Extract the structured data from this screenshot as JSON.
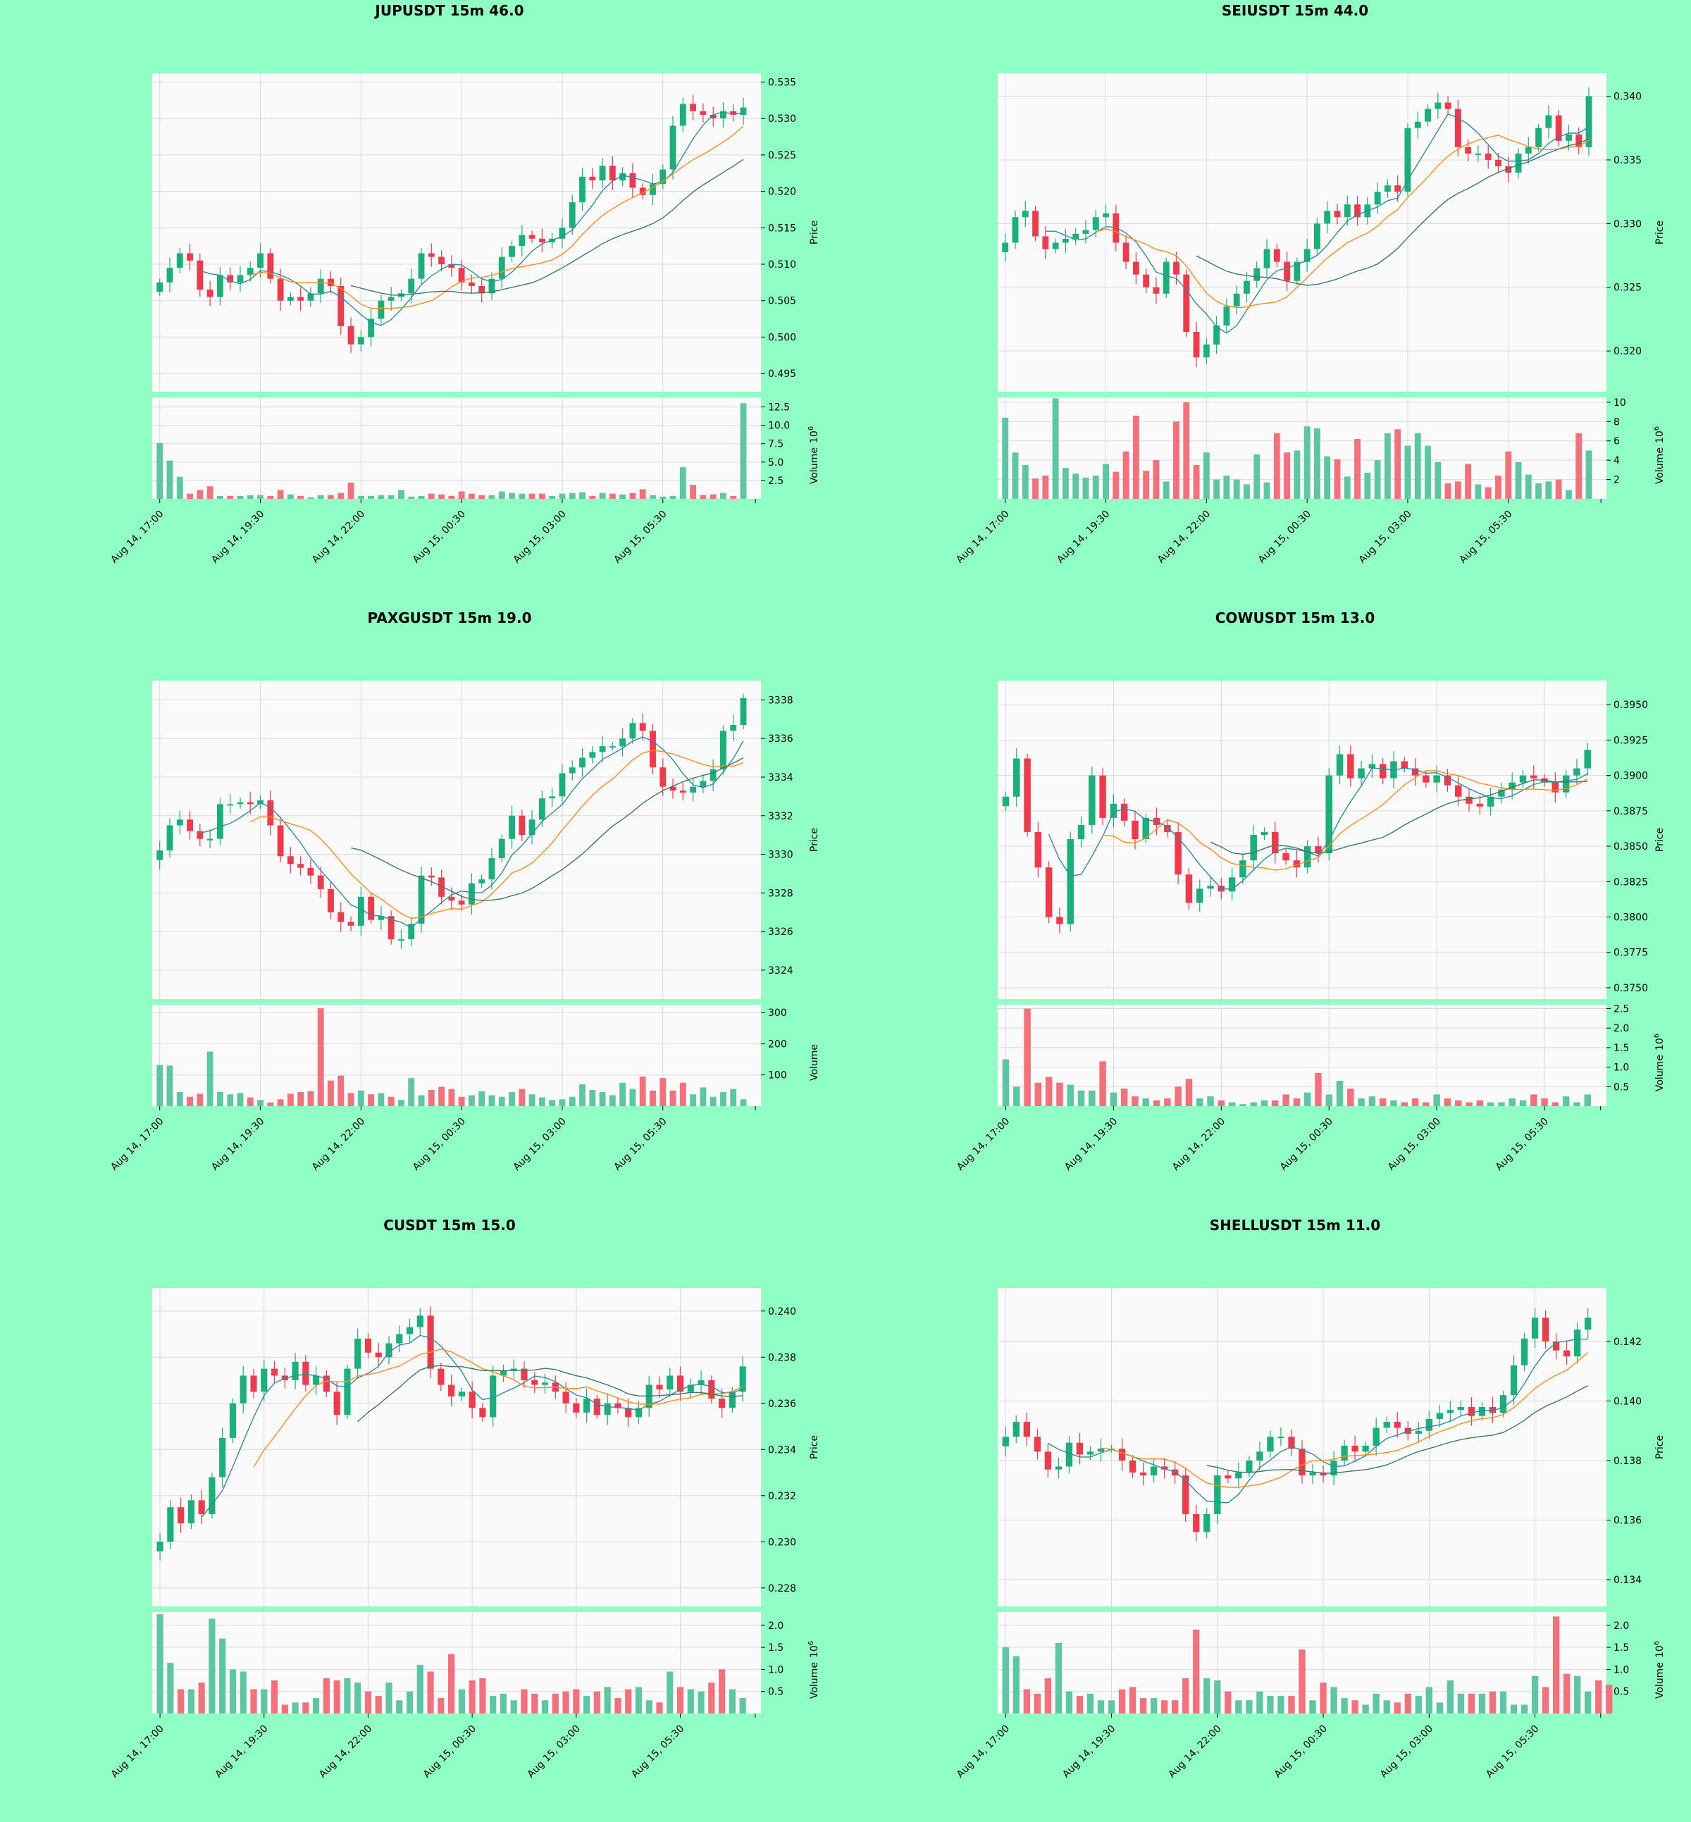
{
  "colors": {
    "background": "#90ffc3",
    "panel": "#fafafa",
    "grid": "#d9d9d9",
    "up": "#19b07a",
    "down": "#f0394a",
    "up_volume": "#5cc7a3",
    "down_volume": "#f4707a",
    "ma_fast": "#2d8ca0",
    "ma_mid": "#ff8a1e",
    "ma_slow": "#3a7a68"
  },
  "chart_data": [
    {
      "type": "candlestick",
      "title": "JUPUSDT 15m 46.0",
      "ylabel": "Price",
      "volume_label": "Volume",
      "volume_exponent": "10",
      "volume_exponent_power": "6",
      "x_ticks": [
        "Aug 14, 17:00",
        "Aug 14, 19:30",
        "Aug 14, 22:00",
        "Aug 15, 00:30",
        "Aug 15, 03:00",
        "Aug 15, 05:30"
      ],
      "x_tick_index": [
        0,
        10,
        20,
        30,
        40,
        50
      ],
      "price_ticks": [
        "0.495",
        "0.500",
        "0.505",
        "0.510",
        "0.515",
        "0.520",
        "0.525",
        "0.530",
        "0.535"
      ],
      "price_range": [
        0.4925,
        0.5362
      ],
      "volume_ticks": [
        "2.5",
        "5.0",
        "7.5",
        "10.0",
        "12.5"
      ],
      "volume_range": [
        0,
        13.8
      ],
      "closes": [
        0.5075,
        0.5095,
        0.5115,
        0.5105,
        0.5065,
        0.5055,
        0.5085,
        0.5075,
        0.5085,
        0.5095,
        0.5115,
        0.508,
        0.505,
        0.5055,
        0.505,
        0.506,
        0.508,
        0.507,
        0.5015,
        0.499,
        0.5,
        0.5025,
        0.505,
        0.5055,
        0.506,
        0.508,
        0.5115,
        0.511,
        0.51,
        0.5095,
        0.5075,
        0.507,
        0.506,
        0.508,
        0.511,
        0.5125,
        0.514,
        0.5135,
        0.513,
        0.5135,
        0.515,
        0.5185,
        0.522,
        0.5215,
        0.5235,
        0.5215,
        0.5225,
        0.5205,
        0.5195,
        0.521,
        0.523,
        0.529,
        0.532,
        0.531,
        0.5305,
        0.53,
        0.531,
        0.5305,
        0.5315
      ],
      "volumes": [
        7.6,
        5.2,
        3.0,
        0.7,
        1.2,
        1.7,
        0.4,
        0.4,
        0.4,
        0.5,
        0.5,
        0.4,
        1.2,
        0.6,
        0.4,
        0.2,
        0.5,
        0.5,
        0.8,
        2.2,
        0.4,
        0.4,
        0.5,
        0.5,
        1.2,
        0.3,
        0.4,
        0.7,
        0.6,
        0.4,
        1.0,
        0.7,
        0.5,
        0.5,
        1.0,
        0.8,
        0.7,
        0.7,
        0.7,
        0.4,
        0.7,
        0.8,
        0.9,
        0.4,
        0.8,
        0.7,
        0.6,
        0.8,
        1.3,
        0.5,
        0.3,
        0.4,
        4.3,
        1.9,
        0.5,
        0.6,
        0.8,
        0.4,
        13.0
      ]
    },
    {
      "type": "candlestick",
      "title": "SEIUSDT 15m 44.0",
      "ylabel": "Price",
      "volume_label": "Volume",
      "volume_exponent": "10",
      "volume_exponent_power": "6",
      "x_ticks": [
        "Aug 14, 17:00",
        "Aug 14, 19:30",
        "Aug 14, 22:00",
        "Aug 15, 00:30",
        "Aug 15, 03:00",
        "Aug 15, 05:30"
      ],
      "x_tick_index": [
        0,
        10,
        20,
        30,
        40,
        50
      ],
      "price_ticks": [
        "0.320",
        "0.325",
        "0.330",
        "0.335",
        "0.340"
      ],
      "price_range": [
        0.3168,
        0.3418
      ],
      "volume_ticks": [
        "2",
        "4",
        "6",
        "8",
        "10"
      ],
      "volume_range": [
        0,
        10.5
      ],
      "closes": [
        0.3285,
        0.3305,
        0.331,
        0.329,
        0.328,
        0.3285,
        0.3288,
        0.3292,
        0.3295,
        0.3305,
        0.3308,
        0.3285,
        0.327,
        0.326,
        0.325,
        0.3245,
        0.327,
        0.326,
        0.3215,
        0.3195,
        0.3205,
        0.322,
        0.3235,
        0.3245,
        0.3255,
        0.3265,
        0.328,
        0.327,
        0.3255,
        0.327,
        0.328,
        0.33,
        0.331,
        0.3305,
        0.3315,
        0.3305,
        0.3315,
        0.3325,
        0.333,
        0.3325,
        0.3375,
        0.338,
        0.339,
        0.3395,
        0.339,
        0.336,
        0.3355,
        0.3355,
        0.335,
        0.3345,
        0.334,
        0.3355,
        0.336,
        0.3375,
        0.3385,
        0.3365,
        0.337,
        0.336,
        0.34
      ],
      "volumes": [
        8.4,
        4.8,
        3.5,
        2.1,
        2.4,
        10.4,
        3.2,
        2.6,
        2.2,
        2.4,
        3.6,
        2.8,
        4.9,
        8.6,
        2.9,
        4.0,
        1.8,
        8.0,
        10.0,
        3.5,
        4.8,
        2.0,
        2.4,
        2.0,
        1.5,
        4.6,
        1.7,
        6.8,
        4.8,
        5.0,
        7.5,
        7.3,
        4.4,
        4.1,
        2.3,
        6.2,
        2.7,
        4.0,
        6.8,
        7.2,
        5.5,
        6.8,
        5.5,
        3.8,
        1.6,
        1.8,
        3.6,
        1.5,
        1.2,
        2.4,
        4.9,
        3.8,
        2.5,
        1.6,
        1.8,
        2.0,
        0.9,
        6.8,
        5.0
      ]
    },
    {
      "type": "candlestick",
      "title": "PAXGUSDT 15m 19.0",
      "ylabel": "Price",
      "volume_label": "Volume",
      "x_ticks": [
        "Aug 14, 17:00",
        "Aug 14, 19:30",
        "Aug 14, 22:00",
        "Aug 15, 00:30",
        "Aug 15, 03:00",
        "Aug 15, 05:30"
      ],
      "x_tick_index": [
        0,
        10,
        20,
        30,
        40,
        50
      ],
      "price_ticks": [
        "3324",
        "3326",
        "3328",
        "3330",
        "3332",
        "3334",
        "3336",
        "3338"
      ],
      "price_range": [
        3322.5,
        3339.0
      ],
      "volume_ticks": [
        "100",
        "200",
        "300"
      ],
      "volume_range": [
        0,
        325
      ],
      "closes": [
        3330.2,
        3331.5,
        3331.8,
        3331.2,
        3330.8,
        3330.8,
        3332.6,
        3332.6,
        3332.7,
        3332.6,
        3332.8,
        3331.5,
        3329.9,
        3329.5,
        3329.3,
        3328.9,
        3328.2,
        3327.0,
        3326.5,
        3326.3,
        3327.8,
        3326.6,
        3326.8,
        3325.6,
        3325.6,
        3326.4,
        3328.9,
        3328.8,
        3327.8,
        3327.6,
        3327.4,
        3328.5,
        3328.7,
        3329.8,
        3330.8,
        3332.0,
        3331.0,
        3331.8,
        3332.9,
        3333.0,
        3334.2,
        3334.5,
        3335.0,
        3335.3,
        3335.6,
        3335.6,
        3336.0,
        3336.8,
        3336.4,
        3334.5,
        3333.5,
        3333.3,
        3333.2,
        3333.5,
        3333.8,
        3334.4,
        3336.4,
        3336.7,
        3338.1
      ],
      "volumes": [
        132,
        130,
        45,
        30,
        40,
        175,
        45,
        38,
        42,
        28,
        20,
        12,
        22,
        40,
        45,
        48,
        314,
        82,
        98,
        42,
        50,
        38,
        42,
        30,
        20,
        90,
        35,
        52,
        62,
        55,
        30,
        35,
        48,
        35,
        30,
        45,
        55,
        38,
        28,
        20,
        22,
        30,
        70,
        52,
        45,
        35,
        75,
        55,
        95,
        50,
        90,
        50,
        75,
        38,
        60,
        30,
        45,
        55,
        22
      ]
    },
    {
      "type": "candlestick",
      "title": "COWUSDT 15m 13.0",
      "ylabel": "Price",
      "volume_label": "Volume",
      "volume_exponent": "10",
      "volume_exponent_power": "6",
      "x_ticks": [
        "Aug 14, 17:00",
        "Aug 14, 19:30",
        "Aug 14, 22:00",
        "Aug 15, 00:30",
        "Aug 15, 03:00",
        "Aug 15, 05:30"
      ],
      "x_tick_index": [
        0,
        10,
        20,
        30,
        40,
        50
      ],
      "price_ticks": [
        "0.3750",
        "0.3775",
        "0.3800",
        "0.3825",
        "0.3850",
        "0.3875",
        "0.3900",
        "0.3925",
        "0.3950"
      ],
      "price_range": [
        0.3742,
        0.3967
      ],
      "volume_ticks": [
        "0.5",
        "1.0",
        "1.5",
        "2.0",
        "2.5"
      ],
      "volume_range": [
        0,
        2.6
      ],
      "closes": [
        0.3885,
        0.3912,
        0.386,
        0.3835,
        0.38,
        0.3795,
        0.3855,
        0.3865,
        0.39,
        0.387,
        0.388,
        0.3868,
        0.3855,
        0.387,
        0.3865,
        0.386,
        0.383,
        0.381,
        0.382,
        0.3822,
        0.3818,
        0.3828,
        0.384,
        0.3858,
        0.386,
        0.3845,
        0.384,
        0.3835,
        0.385,
        0.3845,
        0.39,
        0.3915,
        0.3898,
        0.3905,
        0.3908,
        0.3898,
        0.391,
        0.3905,
        0.39,
        0.3895,
        0.39,
        0.3893,
        0.3885,
        0.388,
        0.3878,
        0.3885,
        0.389,
        0.3895,
        0.39,
        0.3898,
        0.3895,
        0.3888,
        0.39,
        0.3905,
        0.3918
      ],
      "volumes": [
        1.2,
        0.5,
        2.5,
        0.6,
        0.75,
        0.6,
        0.55,
        0.4,
        0.4,
        1.15,
        0.35,
        0.45,
        0.25,
        0.2,
        0.15,
        0.2,
        0.5,
        0.7,
        0.2,
        0.25,
        0.15,
        0.1,
        0.05,
        0.1,
        0.15,
        0.15,
        0.3,
        0.2,
        0.35,
        0.85,
        0.3,
        0.65,
        0.45,
        0.2,
        0.25,
        0.2,
        0.15,
        0.1,
        0.2,
        0.1,
        0.3,
        0.2,
        0.15,
        0.1,
        0.15,
        0.1,
        0.1,
        0.2,
        0.15,
        0.3,
        0.2,
        0.1,
        0.25,
        0.1,
        0.3
      ]
    },
    {
      "type": "candlestick",
      "title": "CUSDT 15m 15.0",
      "ylabel": "Price",
      "volume_label": "Volume",
      "volume_exponent": "10",
      "volume_exponent_power": "6",
      "x_ticks": [
        "Aug 14, 17:00",
        "Aug 14, 19:30",
        "Aug 14, 22:00",
        "Aug 15, 00:30",
        "Aug 15, 03:00",
        "Aug 15, 05:30"
      ],
      "x_tick_index": [
        0,
        10,
        20,
        30,
        40,
        50
      ],
      "price_ticks": [
        "0.228",
        "0.230",
        "0.232",
        "0.234",
        "0.236",
        "0.238",
        "0.240"
      ],
      "price_range": [
        0.2272,
        0.241
      ],
      "volume_ticks": [
        "0.5",
        "1.0",
        "1.5",
        "2.0"
      ],
      "volume_range": [
        0,
        2.3
      ],
      "closes": [
        0.23,
        0.2315,
        0.2308,
        0.2318,
        0.2312,
        0.2328,
        0.2345,
        0.236,
        0.2372,
        0.2365,
        0.2375,
        0.2372,
        0.237,
        0.2378,
        0.2368,
        0.2372,
        0.2365,
        0.2355,
        0.2375,
        0.2388,
        0.2382,
        0.238,
        0.2386,
        0.239,
        0.2393,
        0.2398,
        0.2375,
        0.2368,
        0.2363,
        0.2365,
        0.2358,
        0.2354,
        0.2372,
        0.2374,
        0.2375,
        0.237,
        0.2368,
        0.2369,
        0.2365,
        0.236,
        0.2356,
        0.2362,
        0.2355,
        0.236,
        0.2358,
        0.2354,
        0.2358,
        0.2368,
        0.2366,
        0.2372,
        0.2365,
        0.2368,
        0.237,
        0.2362,
        0.2358,
        0.2365,
        0.2376
      ],
      "volumes": [
        2.25,
        1.15,
        0.55,
        0.55,
        0.7,
        2.15,
        1.7,
        1.0,
        0.95,
        0.55,
        0.55,
        0.75,
        0.2,
        0.25,
        0.25,
        0.35,
        0.8,
        0.75,
        0.8,
        0.7,
        0.5,
        0.4,
        0.7,
        0.3,
        0.5,
        1.1,
        0.95,
        0.35,
        1.35,
        0.55,
        0.75,
        0.8,
        0.4,
        0.45,
        0.3,
        0.55,
        0.45,
        0.3,
        0.45,
        0.5,
        0.55,
        0.4,
        0.5,
        0.6,
        0.35,
        0.55,
        0.6,
        0.3,
        0.25,
        0.95,
        0.6,
        0.55,
        0.5,
        0.7,
        1.0,
        0.55,
        0.35
      ]
    },
    {
      "type": "candlestick",
      "title": "SHELLUSDT 15m 11.0",
      "ylabel": "Price",
      "volume_label": "Volume",
      "volume_exponent": "10",
      "volume_exponent_power": "6",
      "x_ticks": [
        "Aug 14, 17:00",
        "Aug 14, 19:30",
        "Aug 14, 22:00",
        "Aug 15, 00:30",
        "Aug 15, 03:00",
        "Aug 15, 05:30"
      ],
      "x_tick_index": [
        0,
        10,
        20,
        30,
        40,
        50
      ],
      "price_ticks": [
        "0.134",
        "0.136",
        "0.138",
        "0.140",
        "0.142"
      ],
      "price_range": [
        0.1331,
        0.1438
      ],
      "volume_ticks": [
        "0.5",
        "1.0",
        "1.5",
        "2.0"
      ],
      "volume_range": [
        0,
        2.3
      ],
      "closes": [
        0.1388,
        0.1393,
        0.1388,
        0.1383,
        0.1377,
        0.1378,
        0.1386,
        0.1382,
        0.1383,
        0.1384,
        0.1384,
        0.138,
        0.1376,
        0.1375,
        0.1378,
        0.1377,
        0.1375,
        0.1362,
        0.1356,
        0.1362,
        0.1375,
        0.1374,
        0.1376,
        0.138,
        0.1383,
        0.1388,
        0.1388,
        0.1384,
        0.1375,
        0.1376,
        0.1375,
        0.138,
        0.1385,
        0.1383,
        0.1385,
        0.1391,
        0.1393,
        0.1391,
        0.1389,
        0.139,
        0.1394,
        0.1396,
        0.1397,
        0.1398,
        0.1395,
        0.1398,
        0.1396,
        0.1402,
        0.1412,
        0.1421,
        0.1428,
        0.142,
        0.1417,
        0.1415,
        0.1424,
        0.1428
      ],
      "volumes": [
        1.5,
        1.3,
        0.55,
        0.45,
        0.8,
        1.6,
        0.5,
        0.4,
        0.45,
        0.3,
        0.3,
        0.55,
        0.6,
        0.35,
        0.35,
        0.3,
        0.3,
        0.8,
        1.9,
        0.8,
        0.75,
        0.5,
        0.3,
        0.3,
        0.5,
        0.4,
        0.4,
        0.4,
        1.45,
        0.3,
        0.7,
        0.6,
        0.35,
        0.3,
        0.2,
        0.45,
        0.3,
        0.25,
        0.45,
        0.4,
        0.6,
        0.25,
        0.75,
        0.45,
        0.45,
        0.45,
        0.5,
        0.5,
        0.2,
        0.2,
        0.85,
        0.6,
        2.2,
        0.9,
        0.85,
        0.5,
        0.75,
        0.65
      ]
    }
  ]
}
